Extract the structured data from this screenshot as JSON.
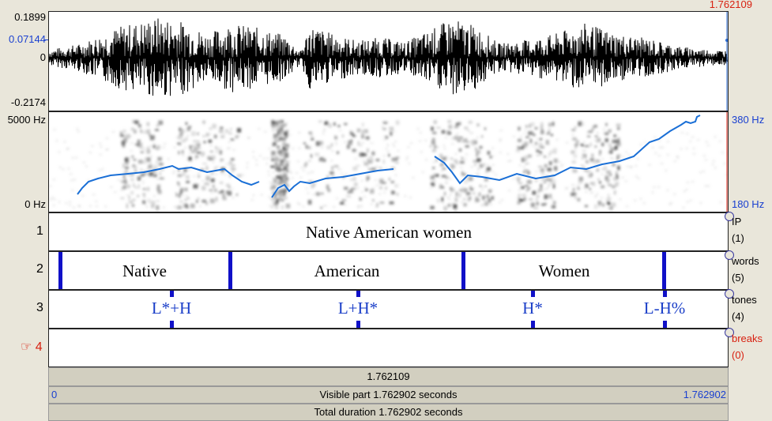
{
  "cursor_time_top": "1.762109",
  "waveform": {
    "y_max": "0.1899",
    "y_cursor": "0.07144",
    "y_zero": "0",
    "y_min": "-0.2174"
  },
  "spectrogram": {
    "freq_max": "5000 Hz",
    "freq_min": "0 Hz",
    "pitch_max": "380 Hz",
    "pitch_min": "180 Hz"
  },
  "tiers": [
    {
      "number": "1",
      "name": "IP",
      "count": "(1)",
      "intervals": [
        "Native American women"
      ]
    },
    {
      "number": "2",
      "name": "words",
      "count": "(5)",
      "intervals": [
        "Native",
        "American",
        "Women"
      ]
    },
    {
      "number": "3",
      "name": "tones",
      "count": "(4)",
      "points": [
        "L*+H",
        "L+H*",
        "H*",
        "L-H%"
      ]
    },
    {
      "number": "4",
      "name": "breaks",
      "count": "(0)",
      "selected_marker": "☞"
    }
  ],
  "bottom": {
    "cursor_time": "1.762109",
    "visible_start": "0",
    "visible_label": "Visible part 1.762902 seconds",
    "visible_end": "1.762902",
    "total_label": "Total duration 1.762902 seconds"
  },
  "colors": {
    "pitch_contour": "#1a6fd6",
    "boundary": "#1010c8",
    "accent_blue": "#1a40d0",
    "accent_red": "#d82010"
  }
}
